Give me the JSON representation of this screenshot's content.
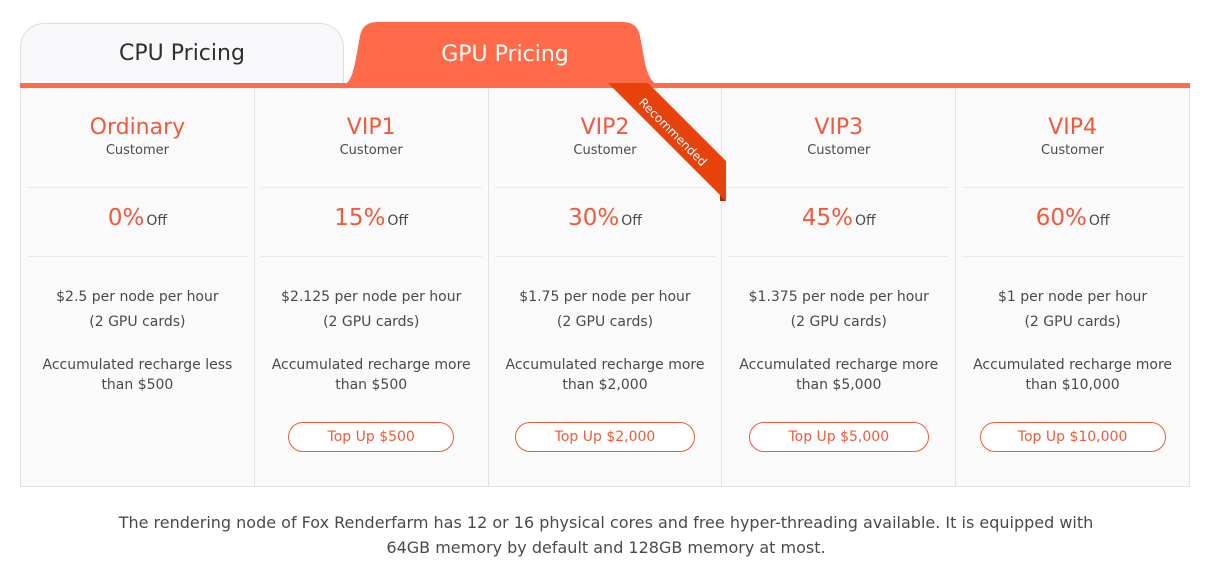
{
  "tabs": [
    {
      "label": "CPU Pricing",
      "active": false
    },
    {
      "label": "GPU Pricing",
      "active": true
    }
  ],
  "colors": {
    "accent": "#ff6a48",
    "accent_text": "#f05a3c",
    "ribbon": "#e8420c"
  },
  "ribbon": {
    "label": "Recommended",
    "plan": "VIP2"
  },
  "plans": [
    {
      "name": "Ordinary",
      "sub": "Customer",
      "discount": "0%",
      "off": "Off",
      "price": "$2.5 per node per hour",
      "cards": "(2 GPU cards)",
      "recharge": "Accumulated recharge less than $500",
      "button": ""
    },
    {
      "name": "VIP1",
      "sub": "Customer",
      "discount": "15%",
      "off": "Off",
      "price": "$2.125 per node per hour",
      "cards": "(2 GPU cards)",
      "recharge": "Accumulated recharge more than $500",
      "button": "Top Up $500"
    },
    {
      "name": "VIP2",
      "sub": "Customer",
      "discount": "30%",
      "off": "Off",
      "price": "$1.75 per node per hour",
      "cards": "(2 GPU cards)",
      "recharge": "Accumulated recharge more than $2,000",
      "button": "Top Up $2,000"
    },
    {
      "name": "VIP3",
      "sub": "Customer",
      "discount": "45%",
      "off": "Off",
      "price": "$1.375 per node per hour",
      "cards": "(2 GPU cards)",
      "recharge": "Accumulated recharge more than $5,000",
      "button": "Top Up $5,000"
    },
    {
      "name": "VIP4",
      "sub": "Customer",
      "discount": "60%",
      "off": "Off",
      "price": "$1 per node per hour",
      "cards": "(2 GPU cards)",
      "recharge": "Accumulated recharge more than $10,000",
      "button": "Top Up $10,000"
    }
  ],
  "footnote": "The rendering node of Fox Renderfarm has 12 or 16 physical cores and free hyper-threading available. It is equipped with 64GB memory by default and 128GB memory at most."
}
